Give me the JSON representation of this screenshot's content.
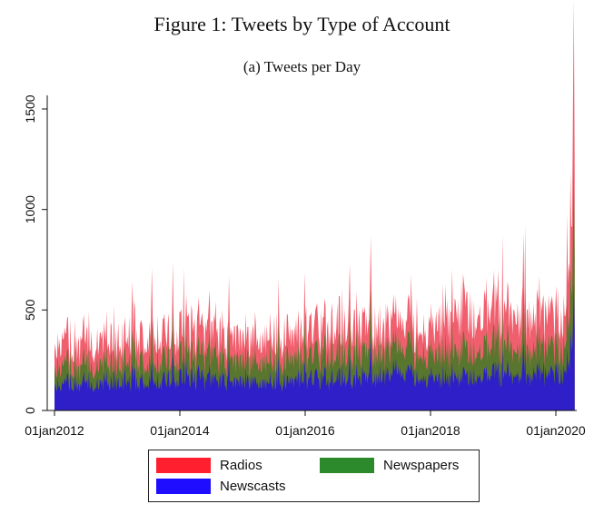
{
  "figure": {
    "title": "Figure 1: Tweets by Type of Account",
    "subtitle": "(a) Tweets per Day"
  },
  "chart_data": {
    "type": "area",
    "stacked": true,
    "title": "Tweets per Day",
    "xlabel": "",
    "ylabel": "",
    "ylim": [
      0,
      1550
    ],
    "xlim": [
      2012.0,
      2020.4
    ],
    "yticks": [
      0,
      500,
      1000,
      1500
    ],
    "xticks": [
      {
        "value": 2012,
        "label": "01jan2012"
      },
      {
        "value": 2014,
        "label": "01jan2014"
      },
      {
        "value": 2016,
        "label": "01jan2016"
      },
      {
        "value": 2018,
        "label": "01jan2018"
      },
      {
        "value": 2020,
        "label": "01jan2020"
      }
    ],
    "grid": false,
    "legend_position": "bottom",
    "x": [
      2012.0,
      2012.25,
      2012.5,
      2012.75,
      2013.0,
      2013.25,
      2013.5,
      2013.75,
      2014.0,
      2014.25,
      2014.5,
      2014.75,
      2015.0,
      2015.25,
      2015.5,
      2015.75,
      2016.0,
      2016.25,
      2016.5,
      2016.75,
      2017.0,
      2017.25,
      2017.5,
      2017.75,
      2018.0,
      2018.25,
      2018.5,
      2018.75,
      2019.0,
      2019.25,
      2019.5,
      2019.75,
      2020.0,
      2020.15,
      2020.3
    ],
    "series": [
      {
        "name": "Newscasts",
        "color": "#2e1fc8",
        "values": [
          120,
          125,
          130,
          130,
          135,
          140,
          140,
          145,
          150,
          150,
          145,
          140,
          140,
          140,
          145,
          145,
          145,
          150,
          160,
          165,
          160,
          170,
          175,
          165,
          155,
          160,
          165,
          165,
          180,
          185,
          175,
          175,
          180,
          175,
          420
        ]
      },
      {
        "name": "Newspapers",
        "color": "#58762e",
        "values": [
          80,
          85,
          90,
          90,
          90,
          95,
          95,
          100,
          100,
          105,
          105,
          100,
          100,
          100,
          105,
          105,
          110,
          115,
          130,
          135,
          120,
          120,
          125,
          120,
          115,
          130,
          140,
          130,
          150,
          135,
          130,
          130,
          130,
          120,
          430
        ]
      },
      {
        "name": "Radios",
        "color": "#f05f6e",
        "values": [
          110,
          115,
          115,
          120,
          115,
          120,
          125,
          125,
          130,
          130,
          125,
          120,
          115,
          115,
          120,
          120,
          125,
          130,
          145,
          150,
          130,
          125,
          130,
          125,
          125,
          190,
          210,
          180,
          190,
          175,
          170,
          170,
          160,
          150,
          560
        ]
      }
    ],
    "legend": [
      {
        "label": "Radios",
        "color": "#ff1f2e"
      },
      {
        "label": "Newspapers",
        "color": "#2c8a2c"
      },
      {
        "label": "Newscasts",
        "color": "#1f0dff"
      }
    ]
  }
}
